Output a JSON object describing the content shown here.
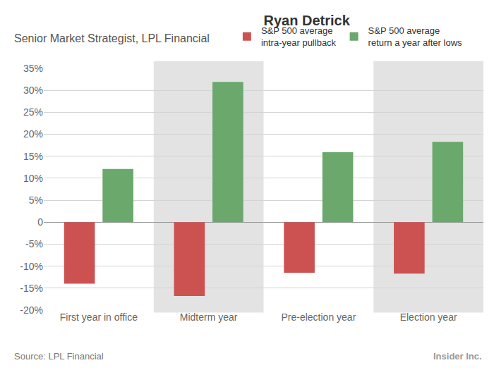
{
  "chart_data": {
    "type": "bar",
    "title": "Ryan Detrick",
    "subtitle": "Senior Market Strategist, LPL Financial",
    "categories": [
      "First year in office",
      "Midterm year",
      "Pre-election year",
      "Election year"
    ],
    "series": [
      {
        "name": "S&P 500 average intra-year pullback",
        "color": "#cc5252",
        "values": [
          -14,
          -16.8,
          -11.5,
          -11.7
        ]
      },
      {
        "name": "S&P 500 average return a year after lows",
        "color": "#6aa86c",
        "values": [
          12.1,
          31.9,
          15.9,
          18.3
        ]
      }
    ],
    "ylim": [
      -20,
      35
    ],
    "yticks": [
      {
        "value": -20,
        "label": "-20%"
      },
      {
        "value": -15,
        "label": "-15%"
      },
      {
        "value": -10,
        "label": "-10%"
      },
      {
        "value": -5,
        "label": "-5%"
      },
      0,
      {
        "value": 5,
        "label": "5%"
      },
      {
        "value": 10,
        "label": "10%"
      },
      {
        "value": 15,
        "label": "15%"
      },
      {
        "value": 20,
        "label": "20%"
      },
      {
        "value": 25,
        "label": "25%"
      },
      {
        "value": 30,
        "label": "30%"
      },
      {
        "value": 35,
        "label": "35%"
      }
    ],
    "grid": true,
    "legend": "top right",
    "annotations": [
      "Source: LPL Financial",
      "Insider Inc."
    ]
  }
}
